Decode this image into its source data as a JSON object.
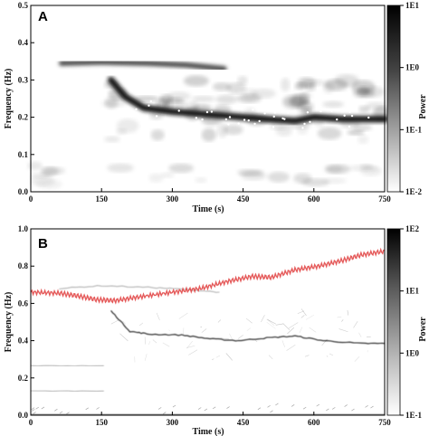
{
  "chart_data": [
    {
      "type": "heatmap",
      "panel_label": "A",
      "xlabel": "Time (s)",
      "ylabel": "Frequency (Hz)",
      "xlim": [
        0,
        750
      ],
      "ylim": [
        0,
        0.5
      ],
      "xticks": [
        0,
        150,
        300,
        450,
        600,
        750
      ],
      "yticks": [
        0.0,
        0.1,
        0.2,
        0.3,
        0.4,
        0.5
      ],
      "ytick_labels": [
        "0.0",
        "0.1",
        "0.2",
        "0.3",
        "0.4",
        "0.5"
      ],
      "colorbar": {
        "label": "Power",
        "ticks": [
          "1E1",
          "1E0",
          "1E-1",
          "1E-2"
        ],
        "scale": "log"
      },
      "ridges": [
        {
          "name": "",
          "intensity": 1.0,
          "width": 0.01,
          "points": [
            [
              0,
              0.005
            ],
            [
              750,
              0.005
            ]
          ]
        },
        {
          "name": "",
          "intensity": 0.55,
          "width": 0.012,
          "points": [
            [
              0,
              0.135
            ],
            [
              165,
              0.135
            ]
          ]
        },
        {
          "name": "",
          "intensity": 0.75,
          "width": 0.012,
          "points": [
            [
              0,
              0.068
            ],
            [
              165,
              0.068
            ]
          ]
        },
        {
          "name": "",
          "intensity": 0.6,
          "width": 0.014,
          "points": [
            [
              65,
              0.345
            ],
            [
              150,
              0.348
            ],
            [
              250,
              0.345
            ],
            [
              330,
              0.34
            ],
            [
              410,
              0.33
            ]
          ]
        },
        {
          "name": "",
          "intensity": 0.9,
          "width": 0.018,
          "points": [
            [
              170,
              0.3
            ],
            [
              200,
              0.255
            ],
            [
              240,
              0.225
            ],
            [
              300,
              0.215
            ],
            [
              400,
              0.205
            ],
            [
              500,
              0.195
            ],
            [
              560,
              0.19
            ],
            [
              600,
              0.2
            ],
            [
              660,
              0.195
            ],
            [
              750,
              0.195
            ]
          ]
        }
      ]
    },
    {
      "type": "heatmap",
      "panel_label": "B",
      "xlabel": "Time (s)",
      "ylabel": "Frequency (Hz)",
      "xlim": [
        0,
        750
      ],
      "ylim": [
        0,
        1.0
      ],
      "xticks": [
        0,
        150,
        300,
        450,
        600,
        750
      ],
      "yticks": [
        0.0,
        0.2,
        0.4,
        0.6,
        0.8,
        1.0
      ],
      "ytick_labels": [
        "0.0",
        "0.2",
        "0.4",
        "0.6",
        "0.8",
        "1.0"
      ],
      "colorbar": {
        "label": "Power",
        "ticks": [
          "1E2",
          "1E1",
          "1E0",
          "1E-1"
        ],
        "scale": "log"
      },
      "red_trace": {
        "color": "#e04040",
        "points": [
          [
            0,
            0.66
          ],
          [
            60,
            0.655
          ],
          [
            100,
            0.64
          ],
          [
            140,
            0.62
          ],
          [
            180,
            0.615
          ],
          [
            230,
            0.635
          ],
          [
            300,
            0.66
          ],
          [
            360,
            0.68
          ],
          [
            420,
            0.72
          ],
          [
            470,
            0.745
          ],
          [
            510,
            0.74
          ],
          [
            560,
            0.78
          ],
          [
            610,
            0.8
          ],
          [
            660,
            0.83
          ],
          [
            700,
            0.86
          ],
          [
            750,
            0.88
          ]
        ]
      },
      "ridges": [
        {
          "name": "",
          "intensity": 0.9,
          "points": [
            [
              170,
              0.56
            ],
            [
              210,
              0.45
            ],
            [
              250,
              0.435
            ],
            [
              320,
              0.43
            ],
            [
              380,
              0.41
            ],
            [
              440,
              0.4
            ],
            [
              500,
              0.415
            ],
            [
              560,
              0.425
            ],
            [
              620,
              0.4
            ],
            [
              700,
              0.385
            ],
            [
              750,
              0.385
            ]
          ]
        },
        {
          "name": "",
          "intensity": 0.35,
          "points": [
            [
              0,
              0.265
            ],
            [
              155,
              0.265
            ]
          ]
        },
        {
          "name": "",
          "intensity": 0.35,
          "points": [
            [
              0,
              0.13
            ],
            [
              155,
              0.13
            ]
          ]
        },
        {
          "name": "",
          "intensity": 0.3,
          "points": [
            [
              60,
              0.68
            ],
            [
              150,
              0.695
            ],
            [
              260,
              0.685
            ],
            [
              330,
              0.675
            ],
            [
              400,
              0.66
            ]
          ]
        }
      ]
    }
  ]
}
